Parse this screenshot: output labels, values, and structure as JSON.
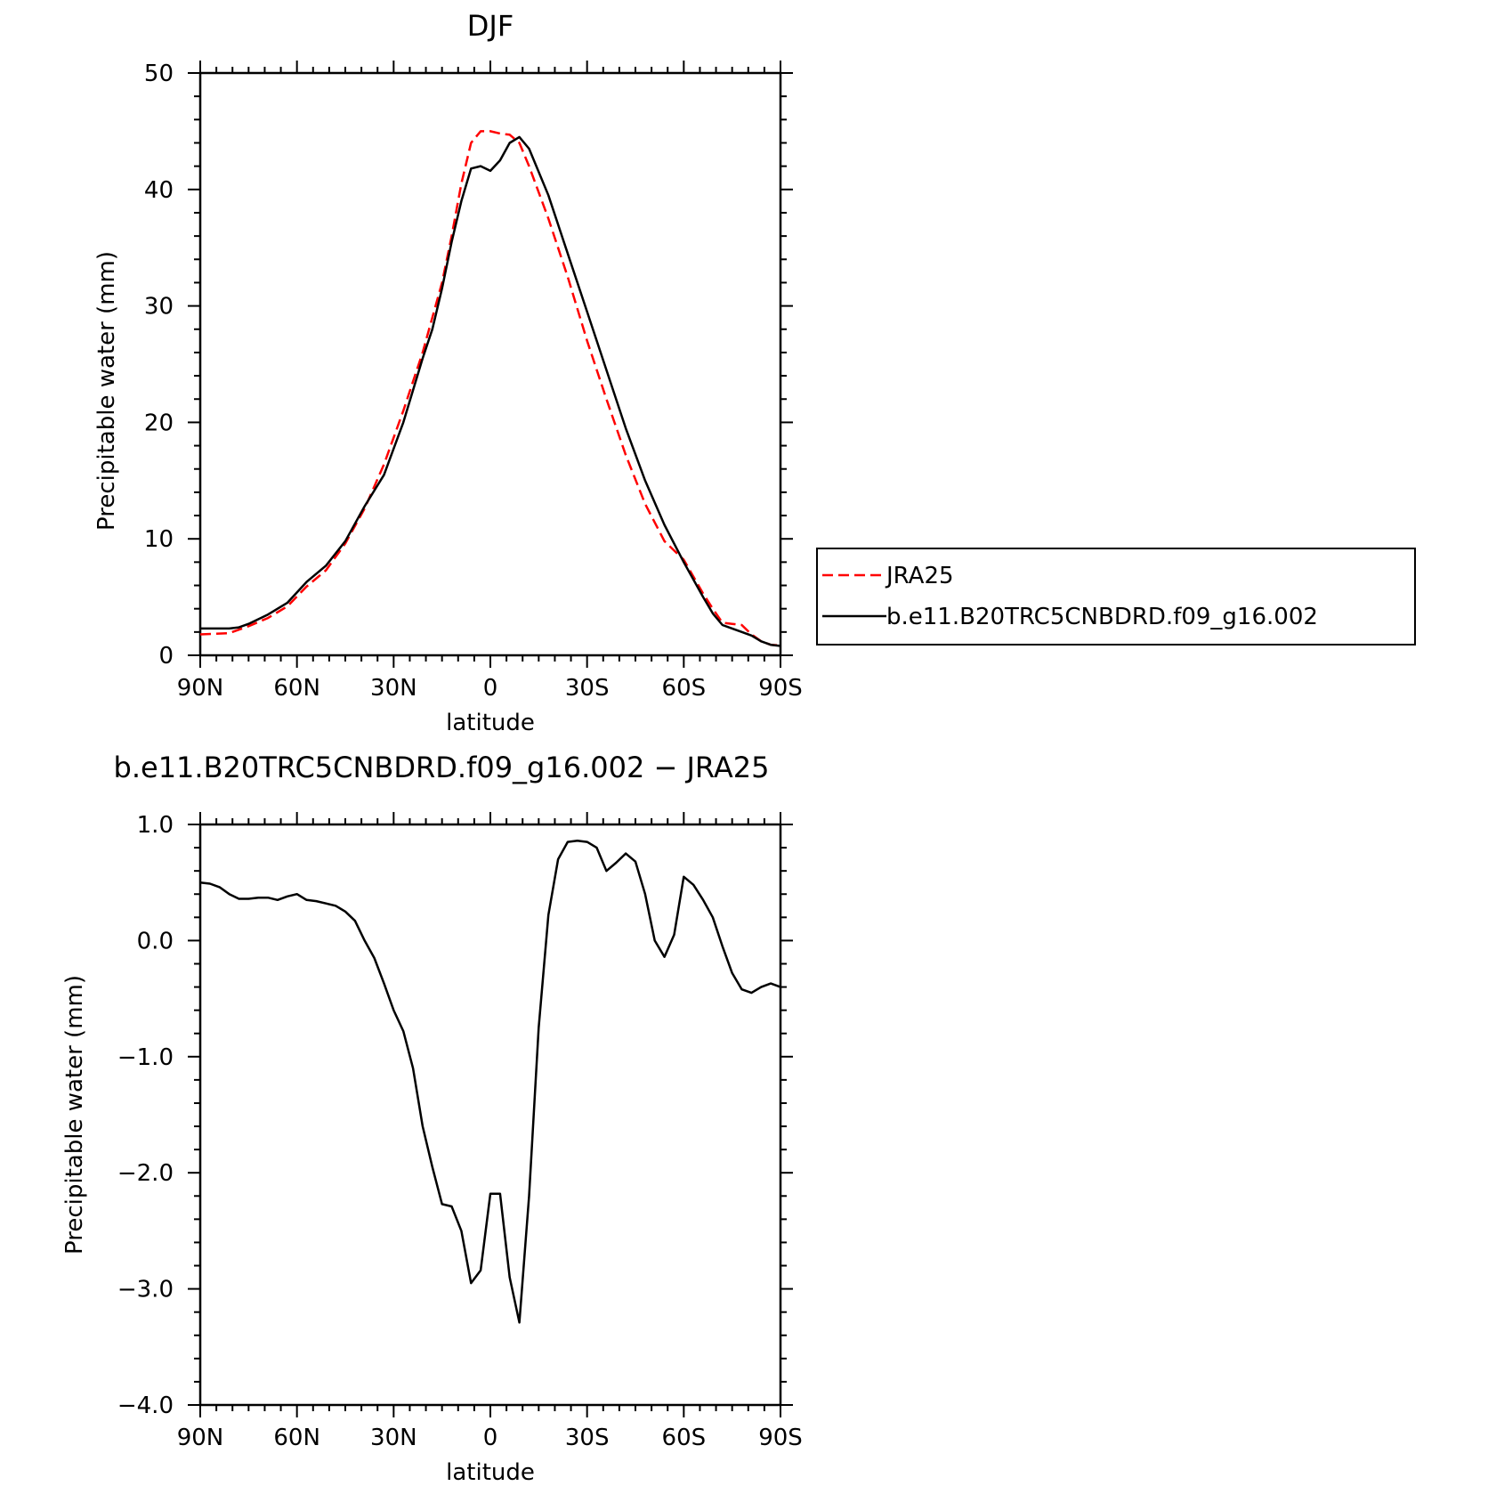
{
  "chart_data": [
    {
      "type": "line",
      "title": "DJF",
      "xlabel": "latitude",
      "ylabel": "Precipitable water (mm)",
      "xlim": [
        90,
        -90
      ],
      "ylim": [
        0,
        50
      ],
      "x_ticks": [
        90,
        60,
        30,
        0,
        -30,
        -60,
        -90
      ],
      "x_tick_labels": [
        "90N",
        "60N",
        "30N",
        "0",
        "30S",
        "60S",
        "90S"
      ],
      "y_ticks": [
        0,
        10,
        20,
        30,
        40,
        50
      ],
      "y_tick_labels": [
        "0",
        "10",
        "20",
        "30",
        "40",
        "50"
      ],
      "grid": false,
      "legend": "right",
      "series": [
        {
          "name": "JRA25",
          "color": "#ff0000",
          "dash": "dashed",
          "x": [
            90,
            81,
            75,
            69,
            63,
            57,
            51,
            45,
            39,
            33,
            27,
            21,
            15,
            12,
            9,
            6,
            3,
            0,
            -3,
            -6,
            -9,
            -12,
            -18,
            -24,
            -30,
            -36,
            -42,
            -48,
            -54,
            -60,
            -66,
            -69,
            -72,
            -75,
            -78,
            -81,
            -84,
            -87,
            -90
          ],
          "y": [
            1.8,
            1.9,
            2.5,
            3.2,
            4.2,
            5.9,
            7.3,
            9.6,
            12.6,
            16.4,
            21.0,
            26.0,
            32.0,
            36.0,
            40.5,
            44.0,
            45.0,
            45.0,
            44.8,
            44.7,
            44.0,
            42.0,
            37.5,
            32.5,
            27.0,
            22.0,
            17.2,
            13.0,
            9.8,
            8.2,
            5.3,
            4.0,
            2.8,
            2.7,
            2.6,
            1.8,
            1.2,
            0.9,
            0.85
          ]
        },
        {
          "name": "b.e11.B20TRC5CNBDRD.f09_g16.002",
          "color": "#000000",
          "dash": "solid",
          "x": [
            90,
            81,
            78,
            75,
            69,
            63,
            57,
            51,
            45,
            39,
            33,
            27,
            21,
            18,
            15,
            12,
            9,
            6,
            3,
            0,
            -3,
            -6,
            -9,
            -12,
            -18,
            -24,
            -30,
            -36,
            -42,
            -48,
            -54,
            -60,
            -66,
            -69,
            -72,
            -75,
            -78,
            -81,
            -84,
            -87,
            -90
          ],
          "y": [
            2.3,
            2.3,
            2.4,
            2.7,
            3.5,
            4.5,
            6.3,
            7.7,
            9.8,
            12.8,
            15.5,
            20.0,
            25.5,
            28.0,
            31.5,
            35.5,
            39.0,
            41.8,
            42.0,
            41.6,
            42.5,
            44.0,
            44.5,
            43.5,
            39.5,
            34.5,
            29.5,
            24.5,
            19.5,
            15.0,
            11.2,
            8.0,
            5.0,
            3.6,
            2.6,
            2.3,
            2.0,
            1.7,
            1.2,
            0.9,
            0.8
          ]
        }
      ]
    },
    {
      "type": "line",
      "title": "b.e11.B20TRC5CNBDRD.f09_g16.002 − JRA25",
      "xlabel": "latitude",
      "ylabel": "Precipitable water (mm)",
      "xlim": [
        90,
        -90
      ],
      "ylim": [
        -4,
        1
      ],
      "x_ticks": [
        90,
        60,
        30,
        0,
        -30,
        -60,
        -90
      ],
      "x_tick_labels": [
        "90N",
        "60N",
        "30N",
        "0",
        "30S",
        "60S",
        "90S"
      ],
      "y_ticks": [
        1,
        0,
        -1,
        -2,
        -3,
        -4
      ],
      "y_tick_labels": [
        "1.0",
        "0.0",
        "−1.0",
        "−2.0",
        "−3.0",
        "−4.0"
      ],
      "grid": false,
      "series": [
        {
          "color": "#000000",
          "dash": "solid",
          "x": [
            90,
            87,
            84,
            81,
            78,
            75,
            72,
            69,
            66,
            63,
            60,
            57,
            54,
            51,
            48,
            45,
            42,
            39,
            36,
            33,
            30,
            27,
            24,
            21,
            18,
            15,
            12,
            9,
            6,
            3,
            0,
            -3,
            -6,
            -9,
            -12,
            -15,
            -18,
            -21,
            -24,
            -27,
            -30,
            -33,
            -36,
            -39,
            -42,
            -45,
            -48,
            -51,
            -54,
            -57,
            -60,
            -63,
            -66,
            -69,
            -72,
            -75,
            -78,
            -81,
            -84,
            -87,
            -90
          ],
          "y": [
            0.5,
            0.49,
            0.46,
            0.4,
            0.36,
            0.36,
            0.37,
            0.37,
            0.35,
            0.38,
            0.4,
            0.35,
            0.34,
            0.32,
            0.3,
            0.25,
            0.17,
            0.0,
            -0.15,
            -0.37,
            -0.6,
            -0.78,
            -1.1,
            -1.6,
            -1.95,
            -2.27,
            -2.29,
            -2.5,
            -2.95,
            -2.84,
            -2.18,
            -2.18,
            -2.9,
            -3.29,
            -2.2,
            -0.75,
            0.22,
            0.7,
            0.85,
            0.86,
            0.85,
            0.8,
            0.6,
            0.67,
            0.75,
            0.68,
            0.4,
            0.0,
            -0.14,
            0.05,
            0.55,
            0.48,
            0.35,
            0.2,
            -0.05,
            -0.28,
            -0.42,
            -0.45,
            -0.4,
            -0.37,
            -0.4
          ]
        }
      ]
    }
  ]
}
